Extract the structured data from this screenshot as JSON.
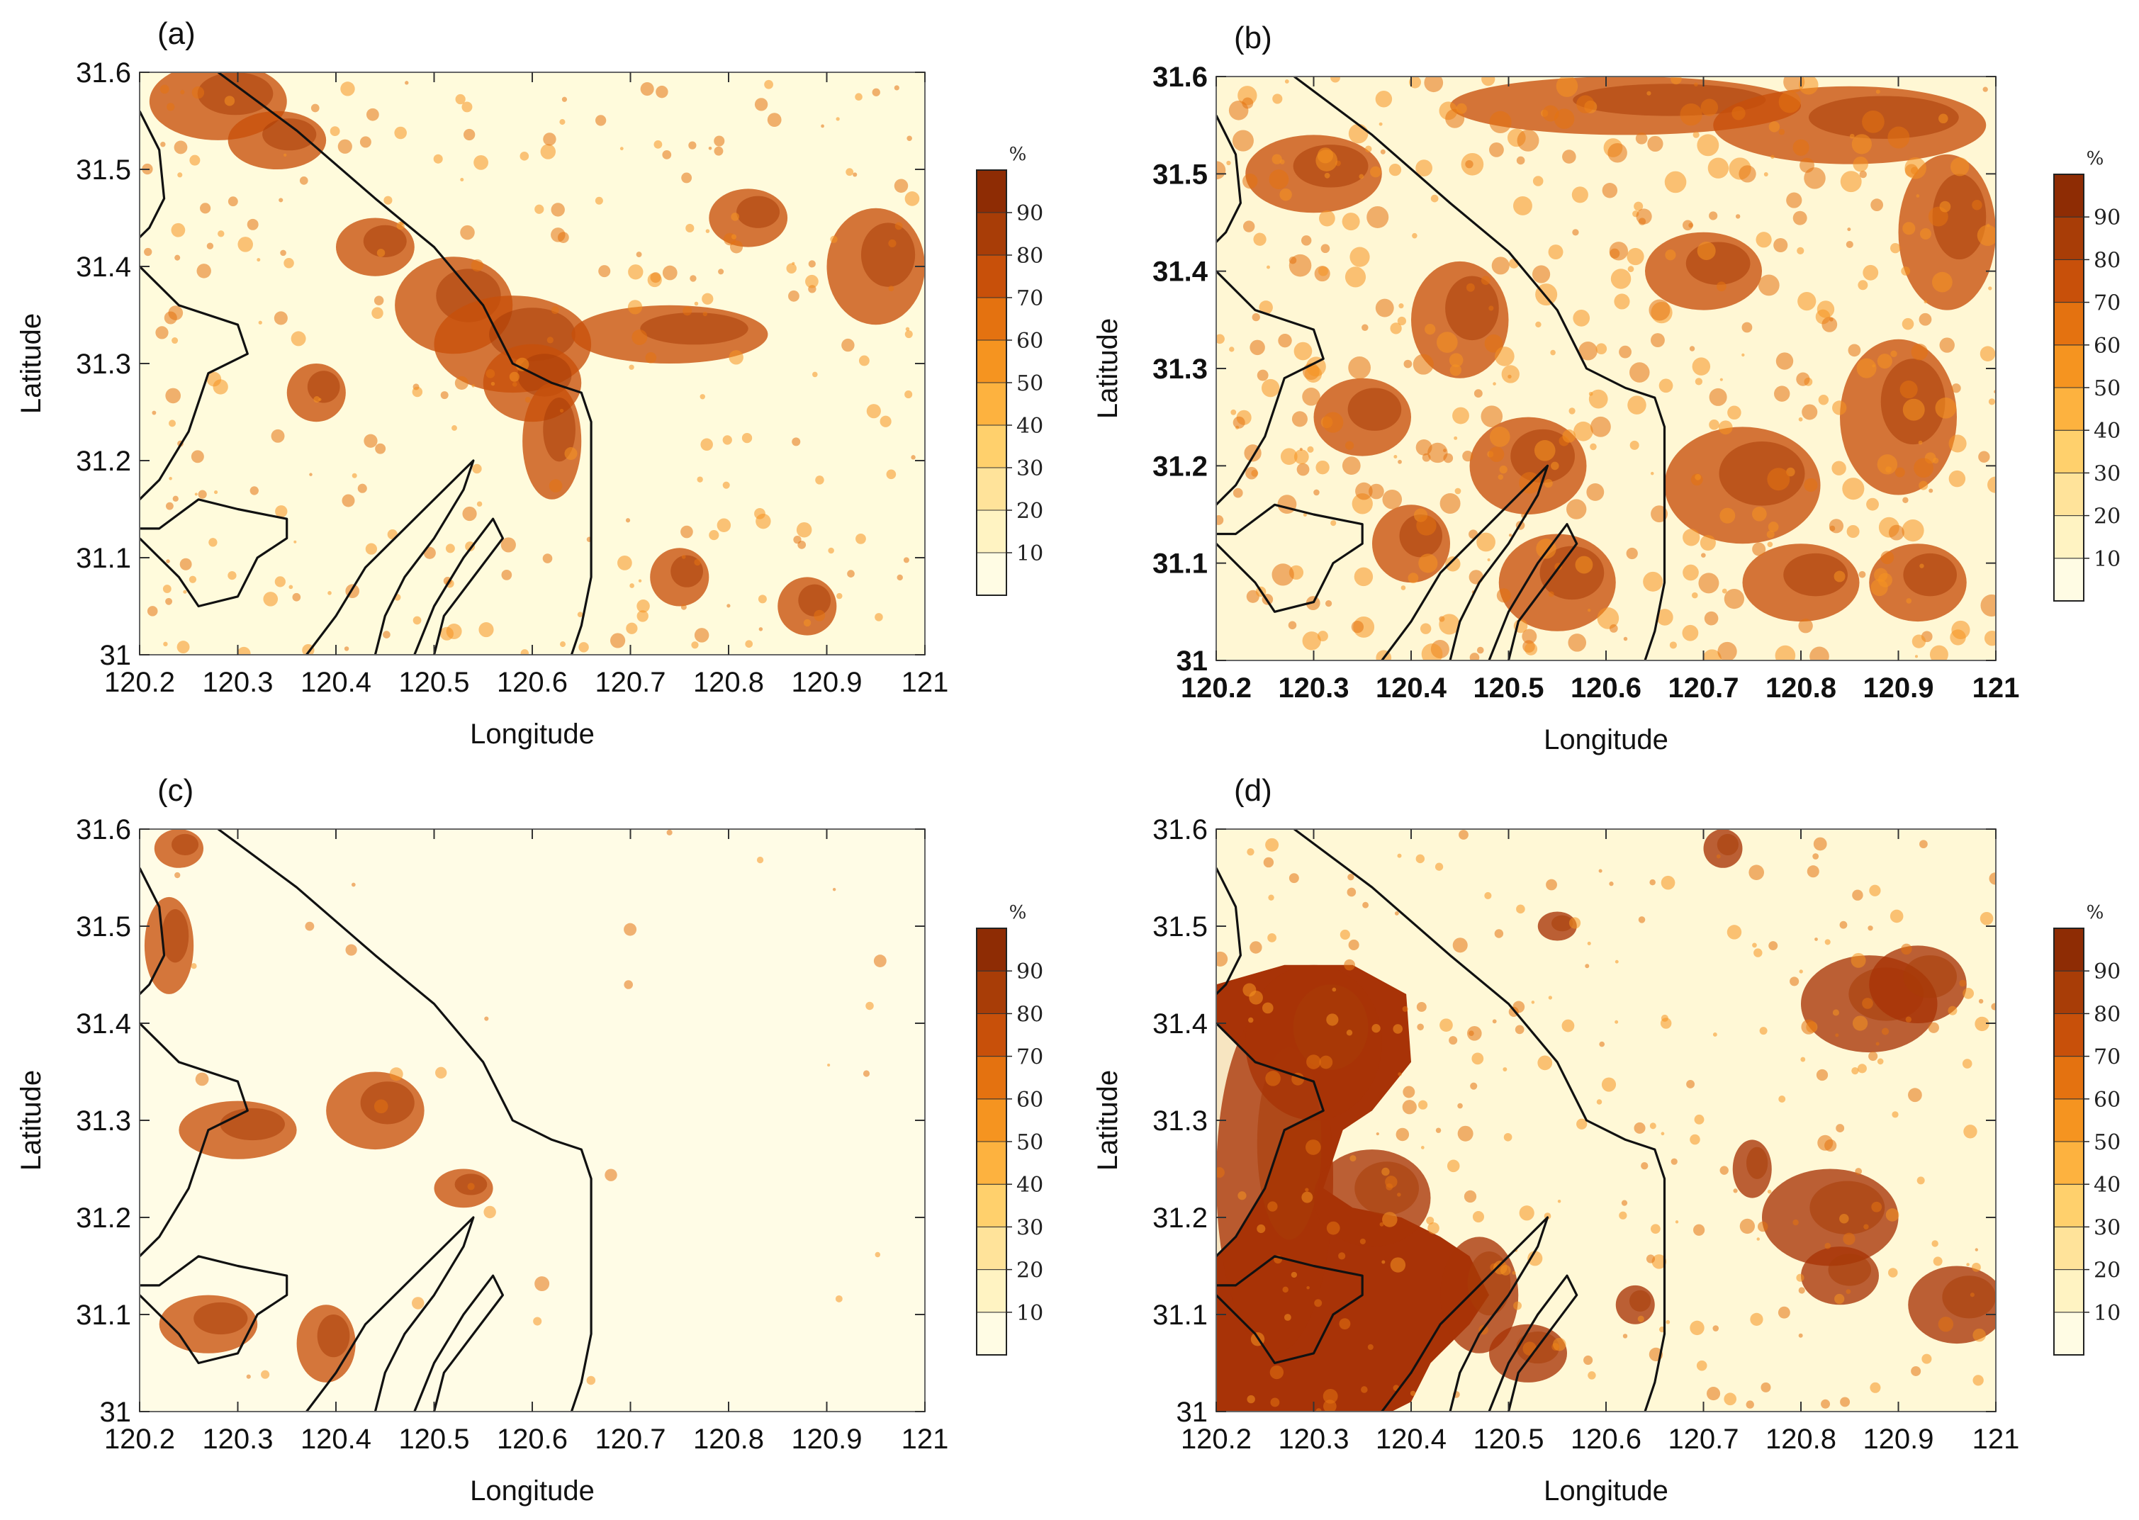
{
  "figure": {
    "unit_symbol": "%",
    "x_axis_title": "Longitude",
    "y_axis_title": "Latitude",
    "x_ticks": [
      "120.2",
      "120.3",
      "120.4",
      "120.5",
      "120.6",
      "120.7",
      "120.8",
      "120.9",
      "121"
    ],
    "y_ticks": [
      "31",
      "31.1",
      "31.2",
      "31.3",
      "31.4",
      "31.5",
      "31.6"
    ],
    "x_range": [
      120.2,
      121.0
    ],
    "y_range": [
      31.0,
      31.6
    ],
    "colorbar_ticks": [
      "10",
      "20",
      "30",
      "40",
      "50",
      "60",
      "70",
      "80",
      "90"
    ],
    "colorbar_colors": [
      "#fffce4",
      "#fff3c2",
      "#ffe39a",
      "#ffd06c",
      "#fdb23f",
      "#f59420",
      "#e47210",
      "#c8500a",
      "#a83d07",
      "#8e2c04"
    ],
    "panels": [
      {
        "label": "(a)",
        "style": "regular",
        "base_color": "#fffbdc",
        "feature_color": "#c8500a"
      },
      {
        "label": "(b)",
        "style": "bold",
        "base_color": "#fff7d4",
        "feature_color": "#c8500a"
      },
      {
        "label": "(c)",
        "style": "regular",
        "base_color": "#fffce6",
        "feature_color": "#c8500a"
      },
      {
        "label": "(d)",
        "style": "regular",
        "base_color": "#fff8d6",
        "feature_color": "#a83307"
      }
    ]
  }
}
